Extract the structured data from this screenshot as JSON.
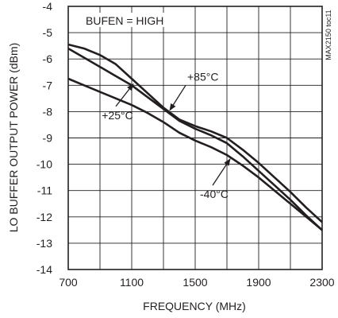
{
  "chart_data": {
    "type": "line",
    "title": "",
    "xlabel": "FREQUENCY (MHz)",
    "ylabel": "LO BUFFER OUTPUT POWER (dBm)",
    "xlim": [
      700,
      2300
    ],
    "ylim": [
      -14,
      -4
    ],
    "x_ticks": [
      "700",
      "1100",
      "1500",
      "1900",
      "2300"
    ],
    "y_ticks": [
      "-4",
      "-5",
      "-6",
      "-7",
      "-8",
      "-9",
      "-10",
      "-11",
      "-12",
      "-13",
      "-14"
    ],
    "grid": true,
    "inset_label": "BUFEN = HIGH",
    "side_note": "MAX2150 toc11",
    "series": [
      {
        "name": "+25°C",
        "x": [
          700,
          800,
          900,
          1000,
          1100,
          1200,
          1300,
          1400,
          1500,
          1600,
          1700,
          1800,
          1900,
          2000,
          2100,
          2200,
          2300
        ],
        "y": [
          -5.6,
          -5.95,
          -6.3,
          -6.65,
          -7.0,
          -7.45,
          -7.9,
          -8.35,
          -8.65,
          -8.9,
          -9.2,
          -9.7,
          -10.25,
          -10.8,
          -11.35,
          -11.95,
          -12.5
        ]
      },
      {
        "name": "+85°C",
        "x": [
          700,
          800,
          900,
          1000,
          1100,
          1200,
          1300,
          1400,
          1500,
          1600,
          1700,
          1800,
          1900,
          2000,
          2100,
          2200,
          2300
        ],
        "y": [
          -5.45,
          -5.6,
          -5.85,
          -6.2,
          -6.75,
          -7.3,
          -7.85,
          -8.3,
          -8.55,
          -8.75,
          -9.0,
          -9.45,
          -9.95,
          -10.5,
          -11.05,
          -11.65,
          -12.2
        ]
      },
      {
        "name": "-40°C",
        "x": [
          700,
          800,
          900,
          1000,
          1100,
          1200,
          1300,
          1400,
          1500,
          1600,
          1700,
          1800,
          1900,
          2000,
          2100,
          2200,
          2300
        ],
        "y": [
          -6.75,
          -7.0,
          -7.25,
          -7.5,
          -7.75,
          -8.05,
          -8.4,
          -8.8,
          -9.1,
          -9.35,
          -9.65,
          -10.05,
          -10.5,
          -11.0,
          -11.5,
          -12.0,
          -12.5
        ]
      }
    ],
    "annotations": [
      {
        "text": "+85°C",
        "series": 1,
        "from_x": 1340,
        "from_y": -7.95,
        "to_x": 1440,
        "to_y": -7.0
      },
      {
        "text": "+25°C",
        "series": 0,
        "from_x": 1110,
        "from_y": -6.95,
        "to_x": 1000,
        "to_y": -7.8
      },
      {
        "text": "-40°C",
        "series": 2,
        "from_x": 1720,
        "from_y": -9.8,
        "to_x": 1610,
        "to_y": -10.8
      }
    ]
  }
}
